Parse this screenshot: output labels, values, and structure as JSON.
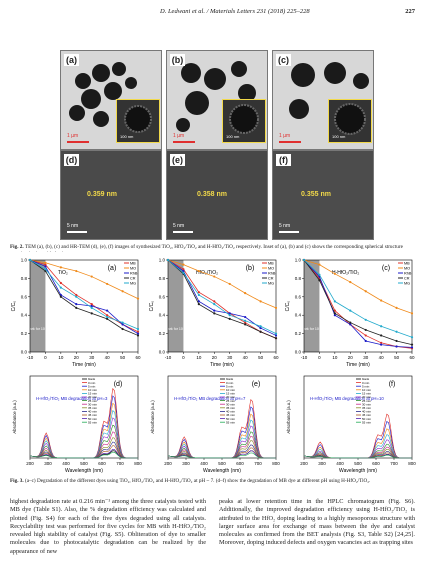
{
  "header": {
    "journal": "D. Ledwani et al. / Materials Letters 231 (2018) 225–228",
    "page": "227"
  },
  "tem_panels": [
    {
      "letter": "(a)",
      "scale": "1 µm",
      "inset_scale": "100 nm"
    },
    {
      "letter": "(b)",
      "scale": "1 µm",
      "inset_scale": "100 nm"
    },
    {
      "letter": "(c)",
      "scale": "1 µm",
      "inset_scale": "100 nm"
    },
    {
      "letter": "(d)",
      "scale": "5 nm",
      "d_spacing": "0.359 nm"
    },
    {
      "letter": "(e)",
      "scale": "5 nm",
      "d_spacing": "0.358 nm"
    },
    {
      "letter": "(f)",
      "scale": "5 nm",
      "d_spacing": "0.355 nm"
    }
  ],
  "fig2_caption": {
    "label": "Fig. 2.",
    "text": "TEM (a), (b), (c) and HR-TEM (d), (e), (f) images of synthesized TiO₂, HfO₂/TiO₂ and H-HfO₂/TiO₂ respectively. Inset of (a), (b) and (c) shows the corresponding spherical structure growing in size with doping."
  },
  "fig3_caption": {
    "label": "Fig. 3.",
    "text": "(a–c) Degradation of the different dyes using TiO₂, HfO₂/TiO₂ and H-HfO₂/TiO₂ at pH ~ 7. (d–f) show the degradation of MB dye at different pH using H-HfO₂/TiO₂."
  },
  "chart_data": [
    {
      "type": "line",
      "panel": "(a)",
      "title": "TiO₂",
      "xlabel": "Time (min)",
      "ylabel": "C/C₀",
      "xlim": [
        -10,
        60
      ],
      "ylim": [
        0,
        1.0
      ],
      "xticks": [
        "-10",
        "0",
        "10",
        "20",
        "30",
        "40",
        "50",
        "60"
      ],
      "yticks": [
        "0.0",
        "0.2",
        "0.4",
        "0.6",
        "0.8",
        "1.0"
      ],
      "annotation": "In dark for 10 min",
      "x": [
        -10,
        0,
        10,
        20,
        30,
        40,
        50,
        60
      ],
      "series": [
        {
          "name": "MB",
          "color": "#e0302a",
          "values": [
            1.0,
            0.95,
            0.75,
            0.62,
            0.52,
            0.4,
            0.3,
            0.22
          ]
        },
        {
          "name": "MO",
          "color": "#f08a1a",
          "values": [
            1.0,
            0.97,
            0.92,
            0.88,
            0.82,
            0.74,
            0.66,
            0.58
          ]
        },
        {
          "name": "RhB",
          "color": "#1a1ac8",
          "values": [
            1.0,
            0.93,
            0.62,
            0.52,
            0.5,
            0.45,
            0.3,
            0.2
          ]
        },
        {
          "name": "CR",
          "color": "#222222",
          "values": [
            1.0,
            0.88,
            0.6,
            0.48,
            0.42,
            0.36,
            0.25,
            0.18
          ]
        },
        {
          "name": "MG",
          "color": "#22aacc",
          "values": [
            1.0,
            0.9,
            0.7,
            0.6,
            0.48,
            0.38,
            0.32,
            0.25
          ]
        }
      ]
    },
    {
      "type": "line",
      "panel": "(b)",
      "title": "HfO₂/TiO₂",
      "xlabel": "Time (min)",
      "ylabel": "C/C₀",
      "xlim": [
        -10,
        60
      ],
      "ylim": [
        0,
        1.0
      ],
      "xticks": [
        "-10",
        "0",
        "10",
        "20",
        "30",
        "40",
        "50",
        "60"
      ],
      "yticks": [
        "0.0",
        "0.2",
        "0.4",
        "0.6",
        "0.8",
        "1.0"
      ],
      "annotation": "In dark for 10 min",
      "x": [
        -10,
        0,
        10,
        20,
        30,
        40,
        50,
        60
      ],
      "series": [
        {
          "name": "MB",
          "color": "#e0302a",
          "values": [
            1.0,
            0.9,
            0.65,
            0.55,
            0.42,
            0.32,
            0.22,
            0.15
          ]
        },
        {
          "name": "MO",
          "color": "#f08a1a",
          "values": [
            1.0,
            0.95,
            0.88,
            0.82,
            0.74,
            0.64,
            0.55,
            0.48
          ]
        },
        {
          "name": "RhB",
          "color": "#1a1ac8",
          "values": [
            1.0,
            0.88,
            0.55,
            0.45,
            0.42,
            0.38,
            0.26,
            0.18
          ]
        },
        {
          "name": "CR",
          "color": "#222222",
          "values": [
            1.0,
            0.85,
            0.52,
            0.42,
            0.36,
            0.3,
            0.22,
            0.15
          ]
        },
        {
          "name": "MG",
          "color": "#22aacc",
          "values": [
            1.0,
            0.86,
            0.62,
            0.52,
            0.4,
            0.34,
            0.28,
            0.2
          ]
        }
      ]
    },
    {
      "type": "line",
      "panel": "(c)",
      "title": "H-HfO₂/TiO₂",
      "xlabel": "Time (min)",
      "ylabel": "C/C₀",
      "xlim": [
        -10,
        60
      ],
      "ylim": [
        0,
        1.0
      ],
      "xticks": [
        "-10",
        "0",
        "10",
        "20",
        "30",
        "40",
        "50",
        "60"
      ],
      "yticks": [
        "0.0",
        "0.2",
        "0.4",
        "0.6",
        "0.8",
        "1.0"
      ],
      "annotation": "In dark for 10 min",
      "x": [
        -10,
        0,
        10,
        20,
        30,
        40,
        50,
        60
      ],
      "series": [
        {
          "name": "MB",
          "color": "#e0302a",
          "values": [
            1.0,
            0.8,
            0.45,
            0.3,
            0.18,
            0.1,
            0.06,
            0.04
          ]
        },
        {
          "name": "MO",
          "color": "#f08a1a",
          "values": [
            1.0,
            0.95,
            0.85,
            0.76,
            0.66,
            0.56,
            0.48,
            0.42
          ]
        },
        {
          "name": "RhB",
          "color": "#1a1ac8",
          "values": [
            1.0,
            0.82,
            0.4,
            0.3,
            0.12,
            0.08,
            0.06,
            0.05
          ]
        },
        {
          "name": "CR",
          "color": "#222222",
          "values": [
            1.0,
            0.78,
            0.42,
            0.32,
            0.24,
            0.18,
            0.12,
            0.08
          ]
        },
        {
          "name": "MG",
          "color": "#22aacc",
          "values": [
            1.0,
            0.84,
            0.55,
            0.45,
            0.35,
            0.28,
            0.22,
            0.16
          ]
        }
      ]
    },
    {
      "type": "line",
      "panel": "(d)",
      "title": "H-HfO₂/TiO₂ MB degradation at pH=3",
      "xlabel": "Wavelength (nm)",
      "ylabel": "Absorbance (a.u.)",
      "xlim": [
        200,
        800
      ],
      "xticks": [
        "200",
        "300",
        "400",
        "500",
        "600",
        "700",
        "800"
      ],
      "legend": [
        "blank",
        "0 min",
        "5 min",
        "10 min",
        "15 min",
        "20 min",
        "25 min",
        "30 min",
        "35 min",
        "40 min",
        "45 min",
        "50 min",
        "55 min"
      ],
      "peak_nm": 664,
      "peak_heights": [
        0.1,
        0.95,
        0.85,
        0.75,
        0.65,
        0.55,
        0.45,
        0.36,
        0.28,
        0.22,
        0.17,
        0.12,
        0.08
      ]
    },
    {
      "type": "line",
      "panel": "(e)",
      "title": "H-HfO₂/TiO₂ MB degradation at pH=7",
      "xlabel": "Wavelength (nm)",
      "ylabel": "Absorbance (a.u.)",
      "xlim": [
        200,
        800
      ],
      "xticks": [
        "200",
        "300",
        "400",
        "500",
        "600",
        "700",
        "800"
      ],
      "legend": [
        "blank",
        "0 min",
        "5 min",
        "10 min",
        "15 min",
        "20 min",
        "25 min",
        "30 min",
        "35 min",
        "40 min",
        "45 min",
        "50 min",
        "55 min"
      ],
      "peak_nm": 664,
      "peak_heights": [
        0.1,
        0.8,
        0.7,
        0.6,
        0.52,
        0.44,
        0.36,
        0.3,
        0.24,
        0.18,
        0.14,
        0.1,
        0.07
      ]
    },
    {
      "type": "line",
      "panel": "(f)",
      "title": "H-HfO₂/TiO₂ MB degradation at pH=10",
      "xlabel": "Wavelength (nm)",
      "ylabel": "Absorbance (a.u.)",
      "xlim": [
        200,
        800
      ],
      "xticks": [
        "200",
        "300",
        "400",
        "500",
        "600",
        "700",
        "800"
      ],
      "legend": [
        "blank",
        "0 min",
        "5 min",
        "10 min",
        "15 min",
        "20 min",
        "25 min",
        "30 min",
        "35 min",
        "40 min",
        "45 min",
        "50 min",
        "55 min"
      ],
      "peak_nm": 664,
      "peak_heights": [
        0.05,
        0.6,
        0.5,
        0.4,
        0.32,
        0.25,
        0.19,
        0.15,
        0.12,
        0.09,
        0.07,
        0.05,
        0.04
      ]
    }
  ],
  "body": {
    "left": "highest degradation rate at 0.216 min⁻¹ among the three catalysts tested with MB dye (Table S1). Also, the % degradation efficiency was calculated and plotted (Fig. S4) for each of the five dyes degraded using all catalysts. Recyclability test was performed for five cycles for MB with H-HfO₂/TiO₂ revealed high stability of catalyst (Fig. S5). Obliteration of dye to smaller molecules due to photocatalytic degradation can be realized by the appearance of new",
    "right": "peaks at lower retention time in the HPLC chromatogram (Fig. S6). Additionally, the improved degradation efficiency using H-HfO₂/TiO₂ is attributed to the HfO₂ doping leading to a highly mesoporous structure with larger surface area for exchange of mass between the dye and catalyst molecules as confirmed from the BET analysis (Fig. S3, Table S2) [24,25]. Moreover, doping induced defects and oxygen vacancies act as trapping sites"
  }
}
